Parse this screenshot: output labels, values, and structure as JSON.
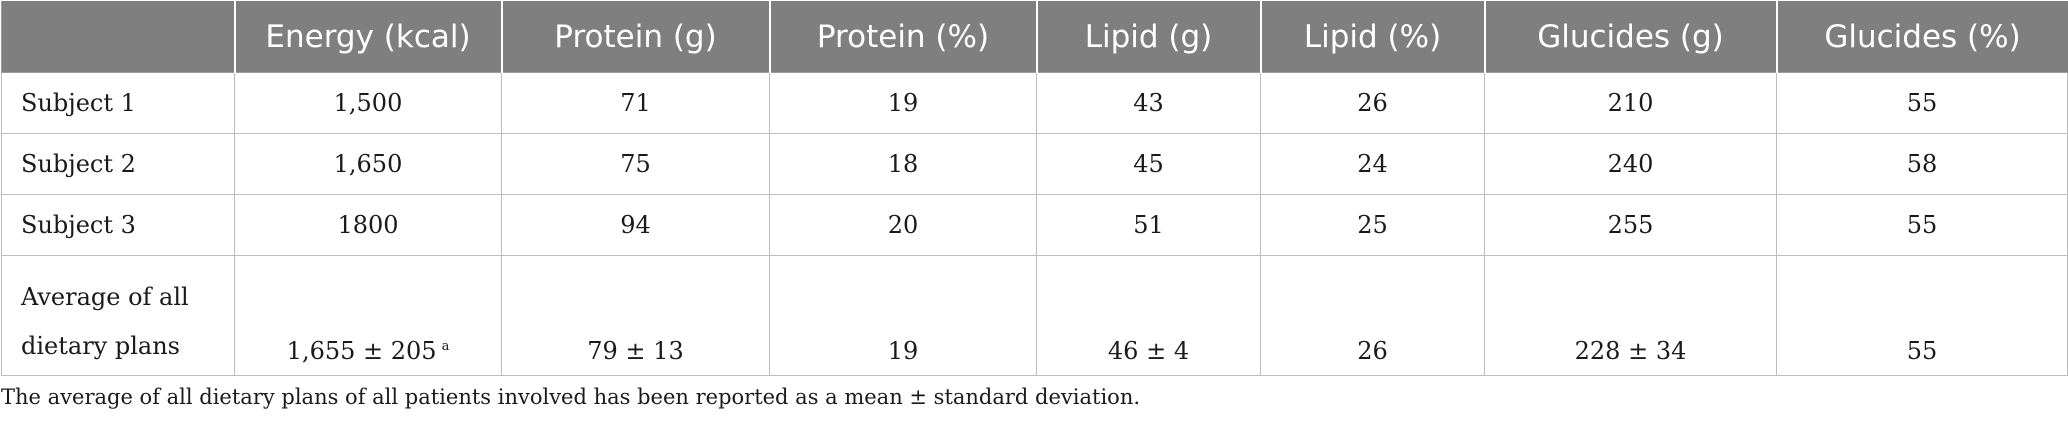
{
  "table": {
    "headers": [
      "",
      "Energy (kcal)",
      "Protein (g)",
      "Protein (%)",
      "Lipid (g)",
      "Lipid (%)",
      "Glucides (g)",
      "Glucides (%)"
    ],
    "rows": [
      {
        "label": "Subject 1",
        "cells": [
          "1,500",
          "71",
          "19",
          "43",
          "26",
          "210",
          "55"
        ]
      },
      {
        "label": "Subject 2",
        "cells": [
          "1,650",
          "75",
          "18",
          "45",
          "24",
          "240",
          "58"
        ]
      },
      {
        "label": "Subject 3",
        "cells": [
          "1800",
          "94",
          "20",
          "51",
          "25",
          "255",
          "55"
        ]
      }
    ],
    "average_row": {
      "label_line1": "Average of all",
      "label_line2": "dietary plans",
      "energy": "1,655 ± 205",
      "energy_mark": "a",
      "cells": [
        "79 ± 13",
        "19",
        "46 ± 4",
        "26",
        "228 ± 34",
        "55"
      ]
    }
  },
  "footnote": "The average of all dietary plans of all patients involved has been reported as a mean ± standard deviation."
}
